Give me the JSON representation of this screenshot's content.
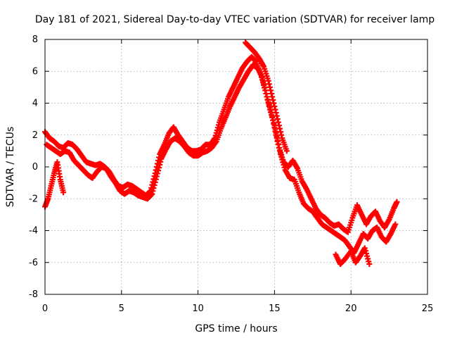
{
  "chart_data": {
    "type": "scatter",
    "title": "Day 181 of 2021, Sidereal Day-to-day VTEC variation (SDTVAR) for receiver lamp",
    "xlabel": "GPS time / hours",
    "ylabel": "SDTVAR / TECUs",
    "xlim": [
      0,
      25
    ],
    "ylim": [
      -8,
      8
    ],
    "xticks": [
      "0",
      "5",
      "10",
      "15",
      "20",
      "25"
    ],
    "yticks": [
      "8",
      "6",
      "4",
      "2",
      "0",
      "-2",
      "-4",
      "-6",
      "-8"
    ],
    "grid": true,
    "marker": "plus",
    "color": "#ff0000",
    "series": [
      {
        "x": [
          0.0,
          0.3,
          0.6,
          0.9,
          1.2,
          1.5,
          1.8,
          2.1,
          2.4,
          2.7,
          3.0,
          3.3,
          3.6,
          3.9,
          4.2,
          4.5,
          4.8,
          5.1,
          5.4,
          5.7,
          6.0,
          6.3,
          6.6,
          6.9,
          7.2,
          7.5,
          7.8,
          8.1,
          8.4,
          8.7,
          9.0,
          9.3,
          9.6,
          9.9,
          10.2,
          10.5,
          10.8,
          11.1,
          11.4,
          11.7,
          12.0,
          12.3,
          12.6,
          12.9,
          13.2,
          13.5,
          13.8,
          14.1,
          14.4,
          14.7,
          15.0,
          15.3,
          15.6,
          15.9,
          16.2,
          16.5,
          16.8,
          17.1,
          17.4,
          17.7,
          18.0,
          18.3,
          18.6,
          18.9,
          19.2,
          19.5,
          19.8,
          20.1,
          20.4,
          20.7,
          21.0,
          21.3,
          21.6,
          21.9,
          22.2,
          22.5,
          22.8,
          23.0
        ],
        "y": [
          2.2,
          1.8,
          1.6,
          1.3,
          1.2,
          1.5,
          1.4,
          1.1,
          0.7,
          0.3,
          0.2,
          0.1,
          0.2,
          0.0,
          -0.3,
          -0.8,
          -1.2,
          -1.3,
          -1.1,
          -1.2,
          -1.4,
          -1.6,
          -1.8,
          -1.5,
          -0.4,
          0.8,
          1.4,
          2.1,
          2.5,
          2.0,
          1.6,
          1.2,
          1.0,
          1.0,
          1.1,
          1.4,
          1.4,
          1.8,
          2.8,
          3.6,
          4.4,
          5.0,
          5.6,
          6.2,
          6.6,
          6.9,
          6.6,
          5.8,
          4.8,
          3.6,
          2.6,
          1.2,
          0.3,
          0.0,
          0.4,
          -0.1,
          -0.9,
          -1.4,
          -2.0,
          -2.6,
          -3.0,
          -3.2,
          -3.5,
          -3.7,
          -3.6,
          -3.9,
          -4.1,
          -3.2,
          -2.4,
          -3.0,
          -3.6,
          -3.1,
          -2.8,
          -3.4,
          -3.8,
          -3.3,
          -2.6,
          -2.2
        ]
      },
      {
        "x": [
          0.1,
          0.4,
          0.7,
          1.0,
          1.3,
          1.6,
          1.9,
          2.2,
          2.5,
          2.8,
          3.1,
          3.4,
          3.7,
          4.0,
          4.3,
          4.6,
          4.9,
          5.2,
          5.5,
          5.8,
          6.1,
          6.4,
          6.7,
          7.0,
          7.3,
          7.6,
          7.9,
          8.2,
          8.5,
          8.8,
          9.1,
          9.4,
          9.7,
          10.0,
          10.3,
          10.6,
          10.9,
          11.2,
          11.5,
          11.8,
          12.1,
          12.4,
          12.7,
          13.0,
          13.3,
          13.6,
          13.9,
          14.2,
          14.5,
          14.8,
          15.1,
          15.4,
          15.7,
          16.0,
          16.3,
          16.6,
          16.9,
          17.2,
          17.5,
          17.8,
          18.1,
          18.4,
          18.7,
          19.0,
          19.3,
          19.6,
          19.9,
          20.2,
          20.5,
          20.8,
          21.1,
          21.4,
          21.7,
          22.0,
          22.3,
          22.6,
          22.9
        ],
        "y": [
          1.4,
          1.2,
          1.0,
          0.8,
          1.0,
          0.9,
          0.4,
          0.1,
          -0.2,
          -0.5,
          -0.7,
          -0.3,
          0.0,
          -0.1,
          -0.6,
          -1.0,
          -1.5,
          -1.7,
          -1.5,
          -1.6,
          -1.8,
          -1.9,
          -2.0,
          -1.7,
          -0.6,
          0.5,
          1.1,
          1.6,
          1.8,
          1.6,
          1.3,
          0.9,
          0.7,
          0.7,
          0.9,
          1.0,
          1.2,
          1.6,
          2.4,
          3.1,
          3.8,
          4.4,
          5.0,
          5.5,
          6.0,
          6.4,
          6.2,
          5.6,
          4.4,
          3.4,
          2.0,
          0.8,
          -0.2,
          -0.7,
          -0.8,
          -1.6,
          -2.3,
          -2.6,
          -2.8,
          -3.2,
          -3.6,
          -3.8,
          -4.0,
          -4.2,
          -4.4,
          -4.6,
          -5.0,
          -5.4,
          -4.8,
          -4.2,
          -4.5,
          -4.0,
          -3.8,
          -4.4,
          -4.7,
          -4.2,
          -3.6
        ]
      },
      {
        "x": [
          0.0,
          0.2,
          0.4,
          0.6,
          0.8,
          1.0,
          1.2,
          13.1,
          13.4,
          13.7,
          14.0,
          14.3,
          14.6,
          14.9,
          15.2,
          15.5,
          15.8,
          19.0,
          19.3,
          19.6,
          20.0,
          20.3,
          20.6,
          20.9,
          21.2
        ],
        "y": [
          -2.5,
          -2.0,
          -1.2,
          -0.4,
          0.3,
          -0.8,
          -1.6,
          7.8,
          7.5,
          7.2,
          6.8,
          6.3,
          5.4,
          4.2,
          3.0,
          1.8,
          1.0,
          -5.5,
          -6.1,
          -5.8,
          -5.3,
          -6.0,
          -5.6,
          -5.1,
          -6.1
        ]
      }
    ]
  }
}
